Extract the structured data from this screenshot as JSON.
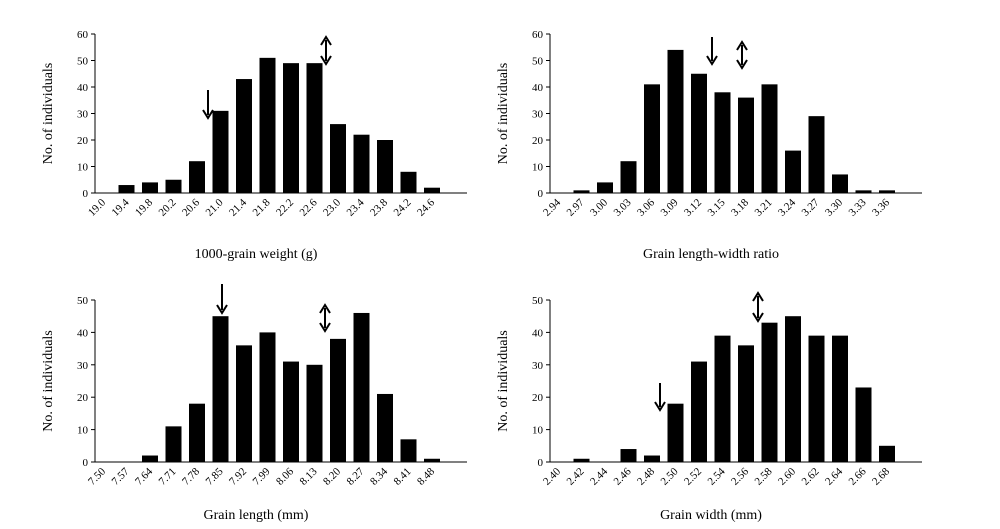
{
  "chart_data": [
    {
      "type": "bar",
      "xlabel": "1000-grain weight (g)",
      "ylabel": "No. of individuals",
      "color": "#000000",
      "categories": [
        "19.0",
        "19.4",
        "19.8",
        "20.2",
        "20.6",
        "21.0",
        "21.4",
        "21.8",
        "22.2",
        "22.6",
        "23.0",
        "23.4",
        "23.8",
        "24.2",
        "24.6"
      ],
      "values": [
        0,
        3,
        4,
        5,
        12,
        31,
        43,
        51,
        49,
        49,
        26,
        22,
        20,
        8,
        2
      ],
      "ylim": [
        0,
        60
      ],
      "yticks": [
        0,
        10,
        20,
        30,
        40,
        50,
        60
      ]
    },
    {
      "type": "bar",
      "xlabel": "Grain length-width ratio",
      "ylabel": "No. of individuals",
      "color": "#000000",
      "categories": [
        "2.94",
        "2.97",
        "3.00",
        "3.03",
        "3.06",
        "3.09",
        "3.12",
        "3.15",
        "3.18",
        "3.21",
        "3.24",
        "3.27",
        "3.30",
        "3.33",
        "3.36"
      ],
      "values": [
        0,
        1,
        4,
        12,
        41,
        54,
        45,
        38,
        36,
        41,
        16,
        29,
        7,
        1,
        1
      ],
      "ylim": [
        0,
        60
      ],
      "yticks": [
        0,
        10,
        20,
        30,
        40,
        50,
        60
      ]
    },
    {
      "type": "bar",
      "xlabel": "Grain length (mm)",
      "ylabel": "No. of individuals",
      "color": "#000000",
      "categories": [
        "7.50",
        "7.57",
        "7.64",
        "7.71",
        "7.78",
        "7.85",
        "7.92",
        "7.99",
        "8.06",
        "8.13",
        "8.20",
        "8.27",
        "8.34",
        "8.41",
        "8.48"
      ],
      "values": [
        0,
        0,
        2,
        11,
        18,
        45,
        36,
        40,
        31,
        30,
        38,
        46,
        21,
        7,
        1
      ],
      "ylim": [
        0,
        50
      ],
      "yticks": [
        0,
        10,
        20,
        30,
        40,
        50
      ]
    },
    {
      "type": "bar",
      "xlabel": "Grain width (mm)",
      "ylabel": "No. of individuals",
      "color": "#000000",
      "categories": [
        "2.40",
        "2.42",
        "2.44",
        "2.46",
        "2.48",
        "2.50",
        "2.52",
        "2.54",
        "2.56",
        "2.58",
        "2.60",
        "2.62",
        "2.64",
        "2.66",
        "2.68"
      ],
      "values": [
        0,
        1,
        0,
        4,
        2,
        18,
        31,
        39,
        36,
        43,
        45,
        39,
        39,
        23,
        5
      ],
      "ylim": [
        0,
        50
      ],
      "yticks": [
        0,
        10,
        20,
        30,
        40,
        50
      ]
    }
  ]
}
